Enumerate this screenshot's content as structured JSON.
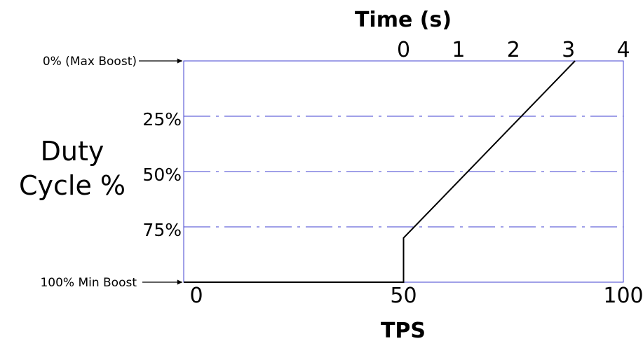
{
  "chart_data": {
    "type": "line",
    "title": "",
    "ylabel_lines": [
      "Duty",
      "Cycle %"
    ],
    "xlabel_bottom": "TPS",
    "xlabel_top": "Time (s)",
    "x_bottom": {
      "ticks": [
        "0",
        "50",
        "100"
      ],
      "range": [
        0,
        100
      ]
    },
    "x_top": {
      "ticks": [
        "0",
        "1",
        "2",
        "3",
        "4"
      ],
      "range_time": [
        0,
        4
      ],
      "tps_at_time_0": 50,
      "tps_at_time_4": 100
    },
    "y": {
      "ticks": [
        "0% (Max Boost)",
        "25%",
        "50%",
        "75%",
        "100% Min Boost"
      ],
      "tick_values": [
        0,
        25,
        50,
        75,
        100
      ],
      "range": [
        0,
        100
      ],
      "inverted": true
    },
    "grid": {
      "horizontal": true,
      "style": "dash-dot",
      "color": "#4040d0"
    },
    "frame_color": "#4040d0",
    "line_color": "#000000",
    "series": [
      {
        "points": [
          {
            "x": 0,
            "y": 100
          },
          {
            "x": 50,
            "y": 100
          },
          {
            "x": 50,
            "y": 80
          },
          {
            "x": 89,
            "y": 0
          }
        ]
      }
    ]
  }
}
